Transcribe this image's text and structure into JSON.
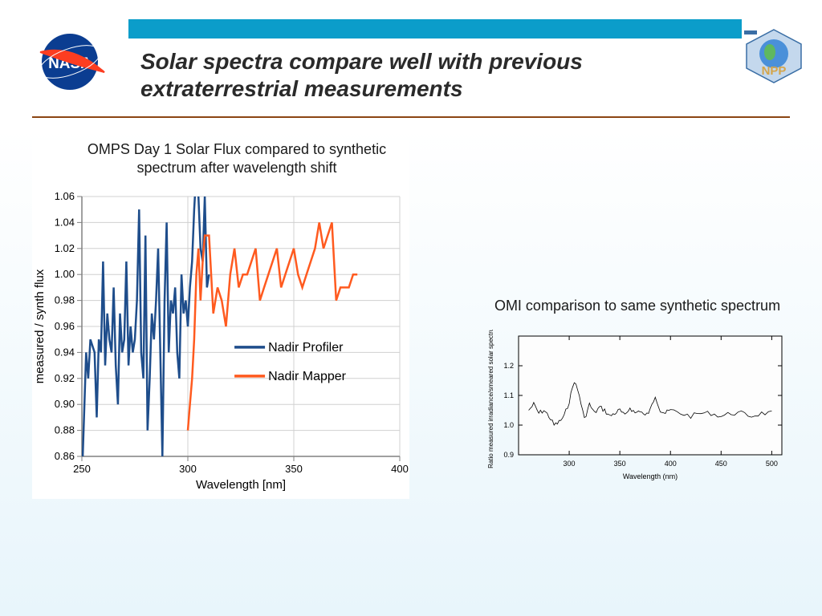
{
  "title_line1": "Solar spectra compare well with previous",
  "title_line2": "extraterrestrial measurements",
  "chart_left": {
    "type": "line",
    "title": "OMPS Day 1 Solar Flux compared to synthetic spectrum after wavelength shift",
    "xlabel": "Wavelength [nm]",
    "ylabel": "measured / synth flux",
    "xlim": [
      250,
      400
    ],
    "ylim": [
      0.86,
      1.06
    ],
    "xticks": [
      250,
      300,
      350,
      400
    ],
    "yticks": [
      0.86,
      0.88,
      0.9,
      0.92,
      0.94,
      0.96,
      0.98,
      1.0,
      1.02,
      1.04,
      1.06
    ],
    "background_color": "#ffffff",
    "grid_color": "#d0d0d0",
    "axis_color": "#808080",
    "tick_fontsize": 13,
    "label_fontsize": 15,
    "title_fontsize": 18,
    "line_width": 2.5,
    "legend": {
      "position": "lower-right-inset",
      "items": [
        {
          "label": "Nadir Profiler",
          "color": "#1e4d8b"
        },
        {
          "label": "Nadir Mapper",
          "color": "#ff5a1f"
        }
      ],
      "fontsize": 16
    },
    "series": [
      {
        "name": "Nadir Profiler",
        "color": "#1e4d8b",
        "x": [
          250,
          252,
          253,
          254,
          256,
          257,
          258,
          259,
          260,
          261,
          262,
          263,
          264,
          265,
          266,
          267,
          268,
          269,
          270,
          271,
          272,
          273,
          274,
          275,
          276,
          277,
          278,
          279,
          280,
          281,
          282,
          283,
          284,
          285,
          286,
          287,
          288,
          289,
          290,
          291,
          292,
          293,
          294,
          295,
          296,
          297,
          298,
          299,
          300,
          301,
          302,
          303,
          304,
          305,
          306,
          307,
          308,
          309,
          310
        ],
        "y": [
          0.84,
          0.94,
          0.92,
          0.95,
          0.94,
          0.89,
          0.95,
          0.94,
          1.01,
          0.93,
          0.97,
          0.95,
          0.94,
          0.99,
          0.93,
          0.9,
          0.97,
          0.94,
          0.95,
          1.01,
          0.93,
          0.96,
          0.94,
          0.95,
          0.98,
          1.05,
          0.94,
          0.92,
          1.03,
          0.88,
          0.92,
          0.97,
          0.95,
          0.98,
          1.02,
          0.94,
          0.86,
          0.98,
          1.04,
          0.94,
          0.98,
          0.97,
          0.99,
          0.94,
          0.92,
          1.0,
          0.97,
          0.98,
          0.96,
          0.99,
          1.01,
          1.05,
          1.08,
          1.06,
          1.02,
          1.01,
          1.06,
          0.99,
          1.0
        ]
      },
      {
        "name": "Nadir Mapper",
        "color": "#ff5a1f",
        "x": [
          300,
          301,
          302,
          303,
          304,
          305,
          306,
          307,
          308,
          310,
          312,
          314,
          316,
          318,
          320,
          322,
          324,
          326,
          328,
          330,
          332,
          334,
          336,
          338,
          340,
          342,
          344,
          346,
          348,
          350,
          352,
          354,
          356,
          358,
          360,
          362,
          364,
          366,
          368,
          370,
          372,
          374,
          376,
          378,
          380
        ],
        "y": [
          0.88,
          0.9,
          0.92,
          0.95,
          1.0,
          1.02,
          0.98,
          1.01,
          1.03,
          1.03,
          0.97,
          0.99,
          0.98,
          0.96,
          1.0,
          1.02,
          0.99,
          1.0,
          1.0,
          1.01,
          1.02,
          0.98,
          0.99,
          1.0,
          1.01,
          1.02,
          0.99,
          1.0,
          1.01,
          1.02,
          1.0,
          0.99,
          1.0,
          1.01,
          1.02,
          1.04,
          1.02,
          1.03,
          1.04,
          0.98,
          0.99,
          0.99,
          0.99,
          1.0,
          1.0
        ]
      }
    ]
  },
  "chart_right": {
    "type": "line",
    "title": "OMI comparison to same synthetic spectrum",
    "xlabel": "Wavelength (nm)",
    "ylabel": "Ratio measured irradiance/smeared solar spectrum",
    "xlim": [
      250,
      510
    ],
    "ylim": [
      0.9,
      1.3
    ],
    "xticks": [
      300,
      350,
      400,
      450,
      500
    ],
    "yticks": [
      0.9,
      1.0,
      1.1,
      1.2
    ],
    "background_color": "#ffffff",
    "border_color": "#000000",
    "tick_fontsize": 9,
    "label_fontsize": 9,
    "line_width": 0.8,
    "series": [
      {
        "name": "OMI",
        "color": "#000000",
        "x": [
          260,
          265,
          270,
          275,
          280,
          285,
          290,
          295,
          300,
          305,
          310,
          315,
          320,
          325,
          330,
          335,
          340,
          345,
          350,
          355,
          360,
          365,
          370,
          375,
          380,
          385,
          390,
          395,
          400,
          410,
          420,
          430,
          440,
          450,
          460,
          470,
          480,
          490,
          500
        ],
        "y": [
          1.05,
          1.07,
          1.04,
          1.05,
          1.03,
          1.0,
          1.01,
          1.03,
          1.08,
          1.15,
          1.1,
          1.02,
          1.07,
          1.04,
          1.06,
          1.05,
          1.03,
          1.04,
          1.05,
          1.03,
          1.06,
          1.04,
          1.05,
          1.03,
          1.05,
          1.1,
          1.05,
          1.04,
          1.05,
          1.04,
          1.03,
          1.04,
          1.04,
          1.03,
          1.04,
          1.04,
          1.03,
          1.04,
          1.04
        ]
      }
    ]
  },
  "colors": {
    "header_bar": "#0b9dca",
    "hr": "#8b4513",
    "bg_bottom": "#e8f5fb"
  }
}
